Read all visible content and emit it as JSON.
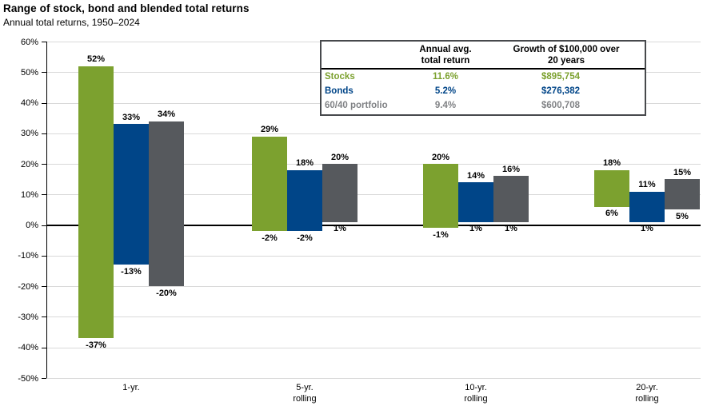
{
  "header": {
    "title": "Range of stock, bond and blended total returns",
    "subtitle": "Annual total returns, 1950–2024"
  },
  "colors": {
    "stocks_green": "#7CA12F",
    "bonds_blue": "#004588",
    "blend_gray": "#56595D",
    "table_gray_text": "#808285",
    "gridline": "#D9D9D9",
    "zero_line": "#000000",
    "table_border": "#47494C"
  },
  "chart_data": {
    "type": "bar",
    "subtype": "floating-range-columns",
    "title": "Range of stock, bond and blended total returns",
    "subtitle": "Annual total returns, 1950–2024",
    "categories": [
      "1-yr.",
      "5-yr.\nrolling",
      "10-yr.\nrolling",
      "20-yr.\nrolling"
    ],
    "series": [
      {
        "name": "Stocks",
        "color": "#7CA12F",
        "max": [
          52,
          29,
          20,
          18
        ],
        "min": [
          -37,
          -2,
          -1,
          6
        ]
      },
      {
        "name": "Bonds",
        "color": "#004588",
        "max": [
          33,
          18,
          14,
          11
        ],
        "min": [
          -13,
          -2,
          1,
          1
        ]
      },
      {
        "name": "60/40 portfolio",
        "color": "#56595D",
        "max": [
          34,
          20,
          16,
          15
        ],
        "min": [
          -20,
          1,
          1,
          5
        ]
      }
    ],
    "ylim": [
      -50,
      60
    ],
    "ytick_step": 10,
    "ytick_suffix": "%",
    "grid": true,
    "legend_position": "table-top-right",
    "summary_table": {
      "headers": [
        "Annual avg.\ntotal return",
        "Growth of $100,000 over\n20 years"
      ],
      "rows": [
        {
          "label": "Stocks",
          "annual_avg_total_return": "11.6%",
          "growth_20yr": "$895,754",
          "color": "#7CA12F"
        },
        {
          "label": "Bonds",
          "annual_avg_total_return": "5.2%",
          "growth_20yr": "$276,382",
          "color": "#004588"
        },
        {
          "label": "60/40 portfolio",
          "annual_avg_total_return": "9.4%",
          "growth_20yr": "$600,708",
          "color": "#808285"
        }
      ]
    }
  }
}
